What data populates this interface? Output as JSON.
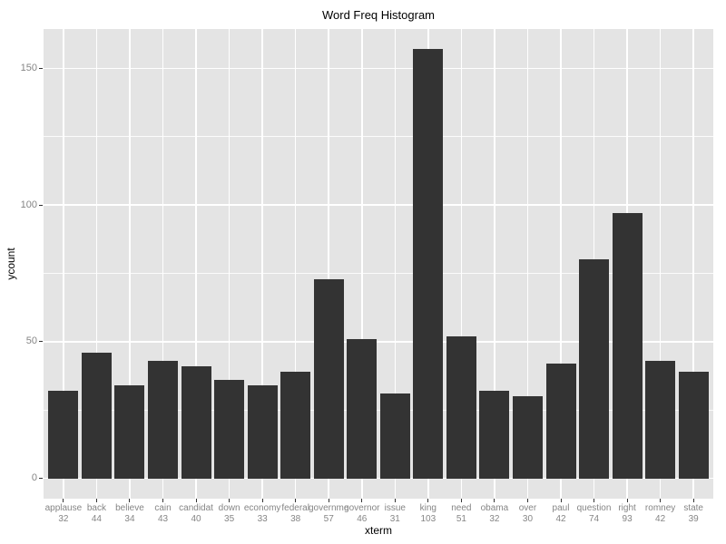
{
  "title": "Word Freq Histogram",
  "chart_data": {
    "type": "bar",
    "title": "Word Freq Histogram",
    "xlabel": "xterm",
    "ylabel": "ycount",
    "ylim": [
      0,
      164
    ],
    "yticks_major": [
      0,
      50,
      100,
      150
    ],
    "yticks_minor": [
      25,
      75,
      125
    ],
    "ytick_labels": [
      "0",
      "50",
      "100",
      "150"
    ],
    "grid": "on",
    "legend": "none",
    "panel_bg": "#E4E4E4",
    "bar_color": "#333333",
    "gridline_color": "#FFFFFF",
    "tick_text_color": "#858585",
    "categories": [
      "applause",
      "back",
      "believe",
      "cain",
      "candidat",
      "down",
      "economy",
      "federal",
      "governme",
      "governor",
      "issue",
      "king",
      "need",
      "obama",
      "over",
      "paul",
      "question",
      "right",
      "romney",
      "state"
    ],
    "category_sublabels": [
      "32",
      "44",
      "34",
      "43",
      "40",
      "35",
      "33",
      "38",
      "57",
      "46",
      "31",
      "103",
      "51",
      "32",
      "30",
      "42",
      "74",
      "93",
      "42",
      "39"
    ],
    "values": [
      32,
      46,
      34,
      43,
      41,
      36,
      34,
      39,
      73,
      51,
      31,
      157,
      52,
      32,
      30,
      42,
      80,
      97,
      43,
      39
    ]
  }
}
